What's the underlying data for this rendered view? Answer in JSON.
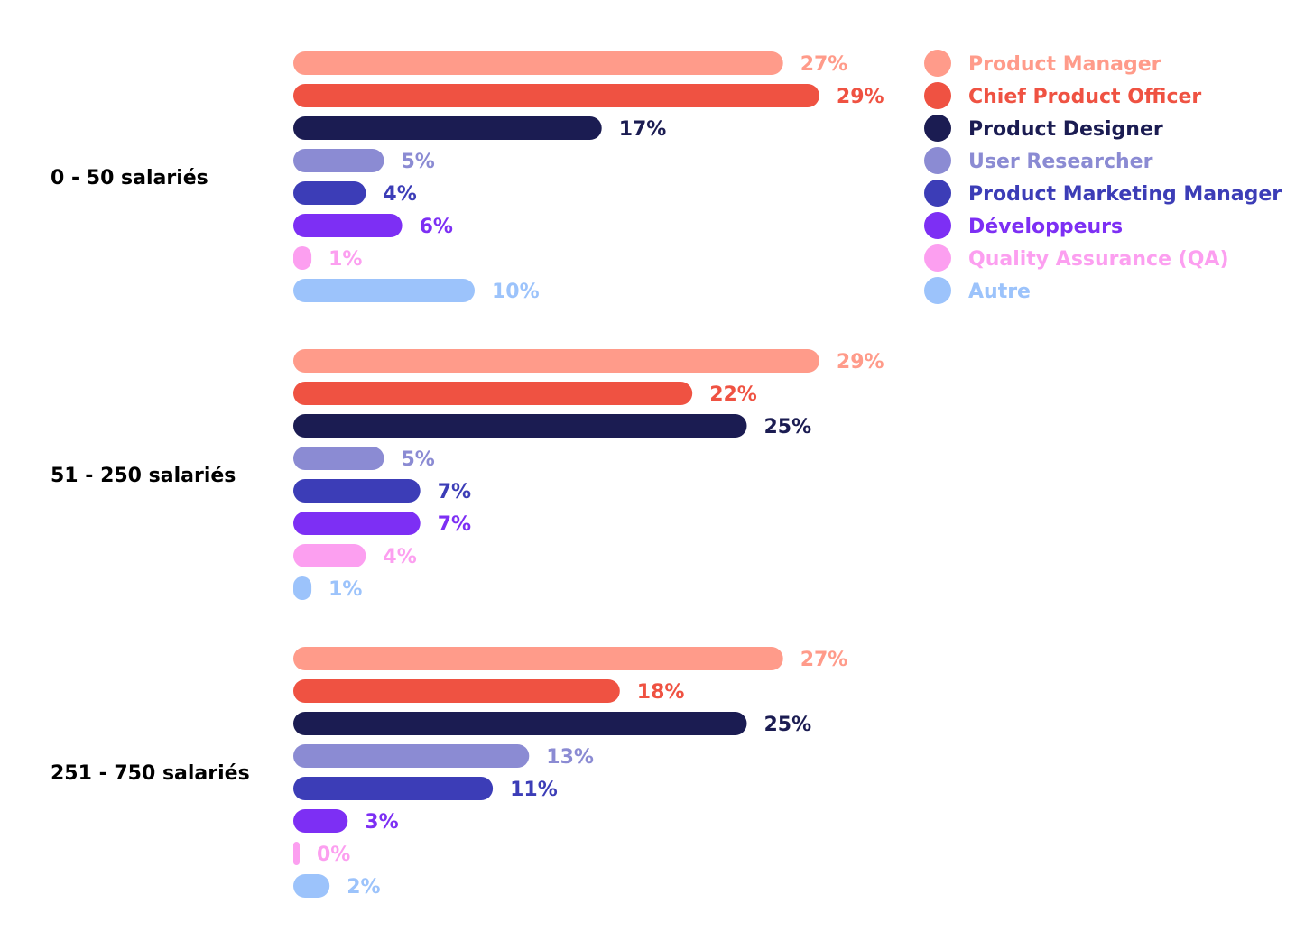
{
  "chart_data": {
    "type": "bar",
    "orientation": "horizontal",
    "value_format": "percent",
    "categories": [
      "0 - 50 salariés",
      "51 - 250 salariés",
      "251 - 750 salariés"
    ],
    "series": [
      {
        "name": "Product Manager",
        "color": "#ff9b8a",
        "values": [
          27,
          29,
          27
        ]
      },
      {
        "name": "Chief Product Officer",
        "color": "#ef5242",
        "values": [
          29,
          22,
          18
        ]
      },
      {
        "name": "Product Designer",
        "color": "#1b1c52",
        "values": [
          17,
          25,
          25
        ]
      },
      {
        "name": "User Researcher",
        "color": "#8b8bd3",
        "values": [
          5,
          5,
          13
        ]
      },
      {
        "name": "Product Marketing Manager",
        "color": "#3c3db7",
        "values": [
          4,
          7,
          11
        ]
      },
      {
        "name": "Développeurs",
        "color": "#7d2ff4",
        "values": [
          6,
          7,
          3
        ]
      },
      {
        "name": "Quality Assurance (QA)",
        "color": "#fc9ff0",
        "values": [
          1,
          4,
          0
        ]
      },
      {
        "name": "Autre",
        "color": "#9cc3fb",
        "values": [
          10,
          1,
          2
        ]
      }
    ],
    "legend_position": "top-right",
    "grid": false
  }
}
